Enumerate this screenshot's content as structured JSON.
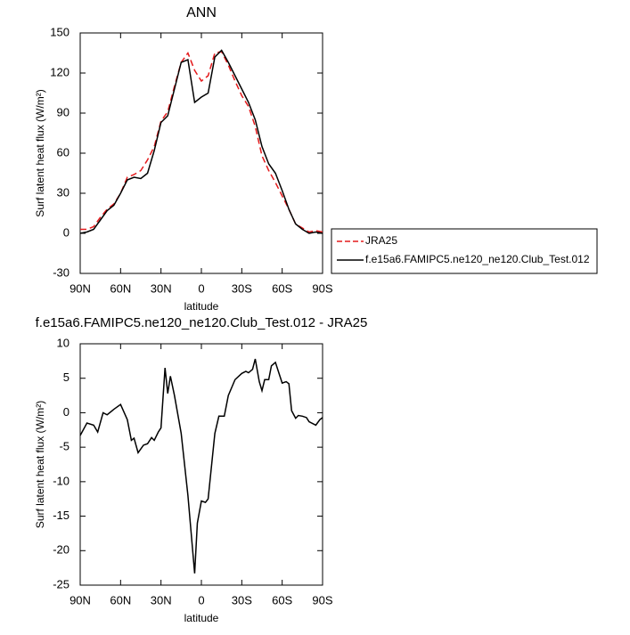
{
  "chart_data": [
    {
      "type": "line",
      "title": "ANN",
      "x_label": "latitude",
      "y_label": "Surf latent heat flux (W/m²)",
      "x": [
        90,
        85,
        80,
        75,
        70,
        65,
        60,
        55,
        50,
        45,
        40,
        35,
        30,
        25,
        20,
        15,
        10,
        5,
        0,
        -5,
        -10,
        -15,
        -20,
        -25,
        -30,
        -35,
        -40,
        -45,
        -50,
        -55,
        -60,
        -65,
        -70,
        -75,
        -80,
        -85,
        -90
      ],
      "series": [
        {
          "name": "JRA25",
          "color": "#e41a1c",
          "line_style": "dashed",
          "values": [
            3,
            3,
            5,
            12,
            18,
            22,
            30,
            42,
            44,
            47,
            55,
            65,
            84,
            91,
            110,
            128,
            135,
            122,
            114,
            118,
            135,
            136,
            126,
            114,
            103,
            95,
            80,
            58,
            47,
            38,
            28,
            18,
            7,
            4,
            1,
            2,
            1
          ]
        },
        {
          "name": "f.e15a6.FAMIPC5.ne120_ne120.Club_Test.012",
          "color": "#000000",
          "line_style": "solid",
          "values": [
            0,
            1,
            3,
            10,
            17,
            21,
            30,
            40,
            42,
            41,
            45,
            62,
            83,
            88,
            108,
            128,
            130,
            98,
            102,
            105,
            132,
            137,
            128,
            118,
            108,
            98,
            85,
            65,
            52,
            45,
            32,
            18,
            7,
            3,
            0,
            1,
            0
          ]
        }
      ],
      "xlim": [
        90,
        -90
      ],
      "xticks": [
        {
          "value": 90,
          "label": "90N"
        },
        {
          "value": 60,
          "label": "60N"
        },
        {
          "value": 30,
          "label": "30N"
        },
        0,
        {
          "value": -30,
          "label": "30S"
        },
        {
          "value": -60,
          "label": "60S"
        },
        {
          "value": -90,
          "label": "90S"
        }
      ],
      "ylim": [
        -30,
        150
      ],
      "yticks": [
        -30,
        0,
        30,
        60,
        90,
        120,
        150
      ],
      "legend": "outside-right"
    },
    {
      "type": "line",
      "title": "f.e15a6.FAMIPC5.ne120_ne120.Club_Test.012 - JRA25",
      "x_label": "latitude",
      "y_label": "Surf latent heat flux (W/m²)",
      "x": [
        90,
        85,
        80,
        77,
        73,
        70,
        65,
        60,
        55,
        52,
        50,
        47,
        43,
        40,
        37,
        35,
        32,
        30,
        27,
        25,
        23,
        20,
        15,
        10,
        5,
        3,
        0,
        -3,
        -5,
        -10,
        -13,
        -17,
        -20,
        -25,
        -30,
        -33,
        -35,
        -38,
        -40,
        -43,
        -45,
        -47,
        -50,
        -52,
        -55,
        -58,
        -60,
        -63,
        -65,
        -67,
        -70,
        -72,
        -75,
        -78,
        -80,
        -85,
        -88,
        -90
      ],
      "values": [
        -3.3,
        -1.5,
        -1.8,
        -2.8,
        0,
        -0.3,
        0.5,
        1.2,
        -1,
        -4,
        -3.7,
        -5.8,
        -4.7,
        -4.5,
        -3.6,
        -4,
        -2.8,
        -2.2,
        6.5,
        2.8,
        5.3,
        2.5,
        -3,
        -12,
        -23.3,
        -16,
        -12.8,
        -13,
        -12.5,
        -3,
        -0.5,
        -0.5,
        2.5,
        4.8,
        5.7,
        6,
        5.8,
        6.3,
        7.8,
        4.5,
        3.2,
        4.8,
        4.8,
        6.8,
        7.3,
        5.5,
        4.3,
        4.5,
        4.2,
        0.3,
        -0.8,
        -0.4,
        -0.5,
        -0.7,
        -1.3,
        -1.8,
        -1,
        -0.7
      ],
      "color": "#000000",
      "xlim": [
        90,
        -90
      ],
      "xticks": [
        {
          "value": 90,
          "label": "90N"
        },
        {
          "value": 60,
          "label": "60N"
        },
        {
          "value": 30,
          "label": "30N"
        },
        0,
        {
          "value": -30,
          "label": "30S"
        },
        {
          "value": -60,
          "label": "60S"
        },
        {
          "value": -90,
          "label": "90S"
        }
      ],
      "ylim": [
        -25,
        10
      ],
      "yticks": [
        -25,
        -20,
        -15,
        -10,
        -5,
        0,
        5,
        10
      ]
    }
  ]
}
